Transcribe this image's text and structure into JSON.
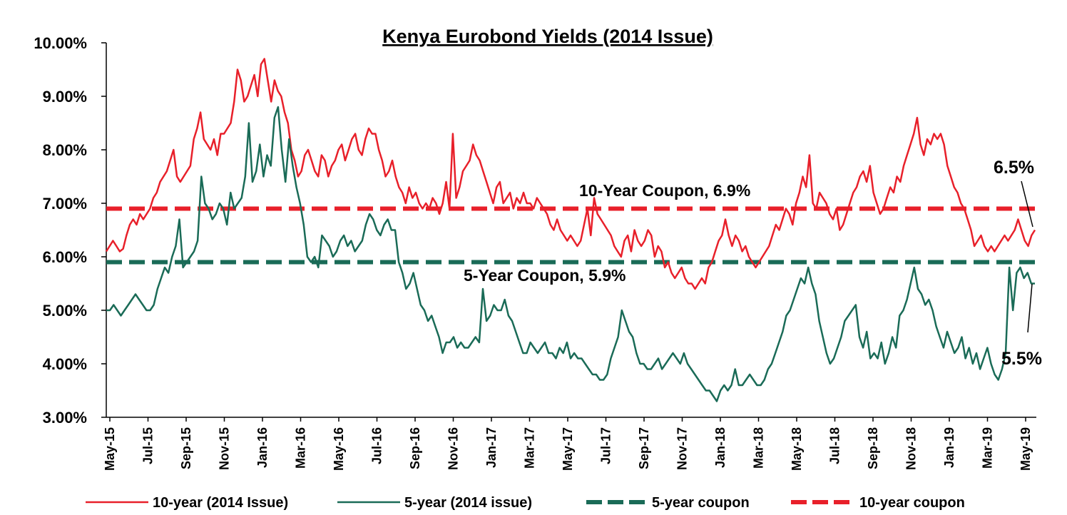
{
  "chart_data": {
    "type": "line",
    "title": "Kenya Eurobond Yields (2014 Issue)",
    "xlabel": "",
    "ylabel": "",
    "ylim": [
      3.0,
      10.0
    ],
    "y_ticks": [
      "3.00%",
      "4.00%",
      "5.00%",
      "6.00%",
      "7.00%",
      "8.00%",
      "9.00%",
      "10.00%"
    ],
    "x_ticks": [
      "May-15",
      "Jul-15",
      "Sep-15",
      "Nov-15",
      "Jan-16",
      "Mar-16",
      "May-16",
      "Jul-16",
      "Sep-16",
      "Nov-16",
      "Jan-17",
      "Mar-17",
      "May-17",
      "Jul-17",
      "Sep-17",
      "Nov-17",
      "Jan-18",
      "Mar-18",
      "May-18",
      "Jul-18",
      "Sep-18",
      "Nov-18",
      "Jan-19",
      "Mar-19",
      "May-19"
    ],
    "grid": false,
    "legend_position": "bottom",
    "series": [
      {
        "name": "10-year (2014 Issue)",
        "color": "#e8202a",
        "style": "solid",
        "values": [
          6.1,
          6.2,
          6.3,
          6.2,
          6.1,
          6.15,
          6.4,
          6.6,
          6.7,
          6.6,
          6.8,
          6.7,
          6.8,
          6.9,
          7.1,
          7.2,
          7.4,
          7.5,
          7.6,
          7.8,
          8.0,
          7.5,
          7.4,
          7.5,
          7.6,
          7.7,
          8.2,
          8.4,
          8.7,
          8.2,
          8.1,
          8.0,
          8.2,
          7.9,
          8.3,
          8.3,
          8.4,
          8.5,
          8.9,
          9.5,
          9.3,
          8.9,
          9.0,
          9.2,
          9.4,
          9.0,
          9.6,
          9.7,
          9.3,
          8.9,
          9.3,
          9.1,
          9.0,
          8.7,
          8.5,
          8.0,
          7.8,
          7.5,
          7.6,
          7.9,
          8.0,
          7.8,
          7.6,
          7.5,
          7.9,
          7.8,
          7.5,
          7.7,
          7.8,
          8.0,
          8.1,
          7.8,
          8.0,
          8.2,
          8.3,
          8.0,
          7.9,
          8.2,
          8.4,
          8.3,
          8.3,
          8.0,
          7.8,
          7.5,
          7.6,
          7.8,
          7.5,
          7.3,
          7.2,
          7.0,
          7.3,
          7.1,
          7.2,
          7.0,
          6.9,
          7.0,
          6.9,
          7.1,
          7.0,
          6.8,
          7.0,
          7.4,
          6.9,
          8.3,
          7.1,
          7.3,
          7.6,
          7.7,
          7.8,
          8.1,
          7.9,
          7.8,
          7.6,
          7.4,
          7.2,
          7.0,
          7.3,
          7.4,
          7.0,
          7.1,
          7.2,
          6.9,
          7.1,
          7.0,
          7.2,
          7.0,
          7.0,
          6.9,
          7.1,
          7.0,
          6.9,
          6.8,
          6.6,
          6.5,
          6.7,
          6.5,
          6.4,
          6.3,
          6.4,
          6.3,
          6.2,
          6.3,
          6.6,
          6.9,
          6.4,
          7.1,
          6.8,
          6.7,
          6.6,
          6.5,
          6.4,
          6.2,
          6.1,
          6.0,
          6.3,
          6.4,
          6.1,
          6.5,
          6.3,
          6.2,
          6.3,
          6.5,
          6.4,
          6.0,
          6.2,
          6.1,
          5.8,
          5.9,
          5.7,
          5.6,
          5.7,
          5.8,
          5.6,
          5.5,
          5.5,
          5.4,
          5.5,
          5.6,
          5.5,
          5.8,
          5.9,
          6.1,
          6.3,
          6.4,
          6.7,
          6.4,
          6.2,
          6.4,
          6.3,
          6.1,
          6.2,
          6.0,
          5.9,
          5.8,
          5.9,
          6.0,
          6.1,
          6.2,
          6.4,
          6.6,
          6.5,
          6.7,
          6.9,
          6.8,
          6.6,
          7.0,
          7.2,
          7.5,
          7.3,
          7.9,
          7.0,
          6.9,
          7.2,
          7.1,
          7.0,
          6.8,
          6.7,
          6.9,
          6.5,
          6.6,
          6.8,
          7.0,
          7.2,
          7.3,
          7.5,
          7.6,
          7.4,
          7.7,
          7.2,
          7.0,
          6.8,
          6.9,
          7.1,
          7.3,
          7.2,
          7.5,
          7.4,
          7.7,
          7.9,
          8.1,
          8.3,
          8.6,
          8.1,
          7.9,
          8.2,
          8.1,
          8.3,
          8.2,
          8.3,
          8.1,
          7.7,
          7.5,
          7.3,
          7.2,
          7.0,
          6.9,
          6.7,
          6.5,
          6.2,
          6.3,
          6.4,
          6.2,
          6.1,
          6.2,
          6.1,
          6.2,
          6.3,
          6.4,
          6.3,
          6.4,
          6.5,
          6.7,
          6.5,
          6.3,
          6.2,
          6.4,
          6.5
        ]
      },
      {
        "name": "5-year (2014 issue)",
        "color": "#1a6b57",
        "style": "solid",
        "values": [
          5.0,
          5.0,
          5.1,
          5.0,
          4.9,
          5.0,
          5.1,
          5.2,
          5.3,
          5.2,
          5.1,
          5.0,
          5.0,
          5.1,
          5.4,
          5.6,
          5.8,
          5.7,
          6.0,
          6.2,
          6.7,
          5.8,
          5.9,
          6.0,
          6.1,
          6.3,
          7.5,
          7.0,
          6.9,
          6.7,
          6.8,
          7.0,
          6.9,
          6.6,
          7.2,
          6.9,
          7.0,
          7.1,
          7.5,
          8.5,
          7.4,
          7.6,
          8.1,
          7.5,
          7.9,
          7.7,
          8.6,
          8.8,
          8.0,
          7.4,
          8.2,
          7.7,
          7.3,
          7.0,
          6.6,
          6.0,
          5.9,
          6.0,
          5.8,
          6.4,
          6.3,
          6.2,
          6.0,
          6.1,
          6.3,
          6.4,
          6.2,
          6.3,
          6.1,
          6.2,
          6.3,
          6.6,
          6.8,
          6.7,
          6.5,
          6.4,
          6.6,
          6.7,
          6.5,
          6.5,
          5.9,
          5.7,
          5.4,
          5.5,
          5.7,
          5.4,
          5.1,
          5.0,
          4.8,
          4.9,
          4.7,
          4.5,
          4.2,
          4.4,
          4.4,
          4.5,
          4.3,
          4.4,
          4.3,
          4.3,
          4.4,
          4.5,
          4.4,
          5.4,
          4.8,
          4.9,
          5.1,
          5.0,
          5.0,
          5.2,
          4.9,
          4.8,
          4.6,
          4.4,
          4.2,
          4.2,
          4.4,
          4.3,
          4.2,
          4.3,
          4.4,
          4.2,
          4.2,
          4.1,
          4.3,
          4.2,
          4.4,
          4.1,
          4.2,
          4.1,
          4.1,
          4.0,
          3.9,
          3.8,
          3.8,
          3.7,
          3.7,
          3.8,
          4.1,
          4.3,
          4.5,
          5.0,
          4.8,
          4.6,
          4.5,
          4.2,
          4.0,
          4.0,
          3.9,
          3.9,
          4.0,
          4.1,
          3.9,
          4.0,
          4.1,
          4.2,
          4.1,
          4.0,
          4.2,
          4.0,
          3.9,
          3.8,
          3.7,
          3.6,
          3.5,
          3.5,
          3.4,
          3.3,
          3.5,
          3.6,
          3.5,
          3.6,
          3.9,
          3.6,
          3.6,
          3.7,
          3.8,
          3.7,
          3.6,
          3.6,
          3.7,
          3.9,
          4.0,
          4.2,
          4.4,
          4.6,
          4.9,
          5.0,
          5.2,
          5.4,
          5.6,
          5.5,
          5.8,
          5.5,
          5.3,
          4.8,
          4.5,
          4.2,
          4.0,
          4.1,
          4.3,
          4.5,
          4.8,
          4.9,
          5.0,
          5.1,
          4.5,
          4.3,
          4.6,
          4.1,
          4.2,
          4.1,
          4.4,
          4.0,
          4.2,
          4.5,
          4.3,
          4.9,
          5.0,
          5.2,
          5.5,
          5.8,
          5.4,
          5.3,
          5.1,
          5.2,
          5.0,
          4.7,
          4.5,
          4.3,
          4.6,
          4.4,
          4.2,
          4.3,
          4.5,
          4.1,
          4.3,
          4.0,
          4.2,
          3.9,
          4.1,
          4.3,
          4.0,
          3.8,
          3.7,
          3.9,
          4.2,
          5.8,
          5.0,
          5.7,
          5.8,
          5.6,
          5.7,
          5.5,
          5.5
        ]
      },
      {
        "name": "5-year coupon",
        "color": "#1a6b57",
        "style": "dashed",
        "constant": 5.9
      },
      {
        "name": "10-year coupon",
        "color": "#e8202a",
        "style": "dashed",
        "constant": 6.9
      }
    ],
    "annotations": {
      "ten_year_coupon": "10-Year Coupon, 6.9%",
      "five_year_coupon": "5-Year Coupon, 5.9%",
      "end_label_10y": "6.5%",
      "end_label_5y": "5.5%"
    }
  }
}
